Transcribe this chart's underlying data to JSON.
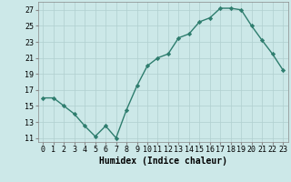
{
  "x": [
    0,
    1,
    2,
    3,
    4,
    5,
    6,
    7,
    8,
    9,
    10,
    11,
    12,
    13,
    14,
    15,
    16,
    17,
    18,
    19,
    20,
    21,
    22,
    23
  ],
  "y": [
    16,
    16,
    15,
    14,
    12.5,
    11.2,
    12.5,
    11,
    14.5,
    17.5,
    20,
    21,
    21.5,
    23.5,
    24,
    25.5,
    26,
    27.2,
    27.2,
    27,
    25,
    23.2,
    21.5,
    19.5
  ],
  "line_color": "#2e7d6e",
  "marker": "D",
  "marker_size": 2.2,
  "bg_color": "#cce8e8",
  "grid_color": "#b0cfcf",
  "xlabel": "Humidex (Indice chaleur)",
  "xlim": [
    -0.5,
    23.5
  ],
  "ylim": [
    10.5,
    28
  ],
  "yticks": [
    11,
    13,
    15,
    17,
    19,
    21,
    23,
    25,
    27
  ],
  "xticks": [
    0,
    1,
    2,
    3,
    4,
    5,
    6,
    7,
    8,
    9,
    10,
    11,
    12,
    13,
    14,
    15,
    16,
    17,
    18,
    19,
    20,
    21,
    22,
    23
  ],
  "xtick_labels": [
    "0",
    "1",
    "2",
    "3",
    "4",
    "5",
    "6",
    "7",
    "8",
    "9",
    "10",
    "11",
    "12",
    "13",
    "14",
    "15",
    "16",
    "17",
    "18",
    "19",
    "20",
    "21",
    "22",
    "23"
  ],
  "xlabel_fontsize": 7,
  "tick_fontsize": 6,
  "line_width": 1.0,
  "spine_color": "#888888"
}
